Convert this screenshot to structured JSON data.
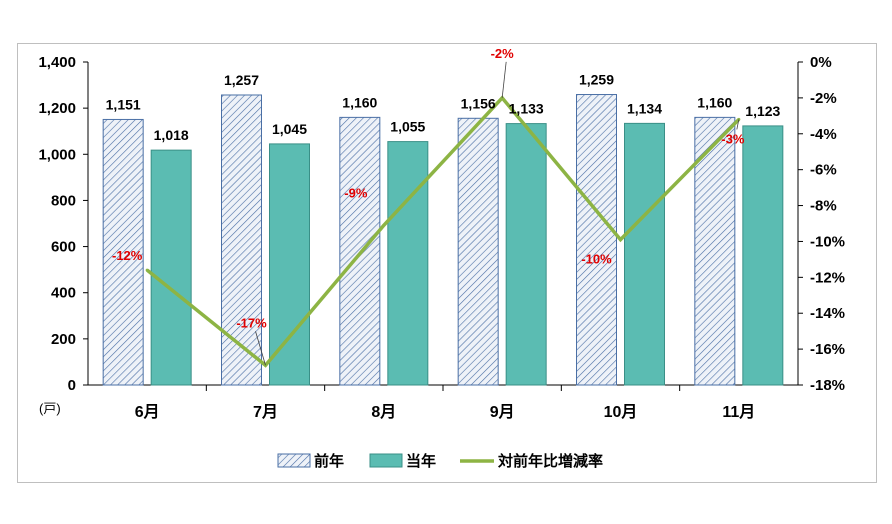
{
  "chart_data": {
    "type": "bar",
    "categories": [
      "6月",
      "7月",
      "8月",
      "9月",
      "10月",
      "11月"
    ],
    "series": [
      {
        "name": "前年",
        "type": "bar",
        "axis": "left",
        "values": [
          1151,
          1257,
          1160,
          1156,
          1259,
          1160
        ],
        "labels": [
          "1,151",
          "1,257",
          "1,160",
          "1,156",
          "1,259",
          "1,160"
        ]
      },
      {
        "name": "当年",
        "type": "bar",
        "axis": "left",
        "values": [
          1018,
          1045,
          1055,
          1133,
          1134,
          1123
        ],
        "labels": [
          "1,018",
          "1,045",
          "1,055",
          "1,133",
          "1,134",
          "1,123"
        ]
      },
      {
        "name": "対前年比増減率",
        "type": "line",
        "axis": "right",
        "values": [
          -11.6,
          -16.9,
          -9.1,
          -2.0,
          -9.9,
          -3.2
        ],
        "labels": [
          "-12%",
          "-17%",
          "-9%",
          "-2%",
          "-10%",
          "-3%"
        ]
      }
    ],
    "y_left": {
      "ylim": [
        0,
        1400
      ],
      "ticks": [
        "0",
        "200",
        "400",
        "600",
        "800",
        "1,000",
        "1,200",
        "1,400"
      ],
      "unit": "(戸)"
    },
    "y_right": {
      "ylim": [
        -18,
        0
      ],
      "ticks": [
        "0%",
        "-2%",
        "-4%",
        "-6%",
        "-8%",
        "-10%",
        "-12%",
        "-14%",
        "-16%",
        "-18%"
      ]
    },
    "grid": false,
    "legend_position": "bottom",
    "colors": {
      "prev_year": "#4a6fa5",
      "prev_year_fill": "#e9eef6",
      "current_year": "#5bbcb2",
      "rate_line": "#8db444",
      "rate_label": "#e00000",
      "axis": "#000000"
    }
  }
}
